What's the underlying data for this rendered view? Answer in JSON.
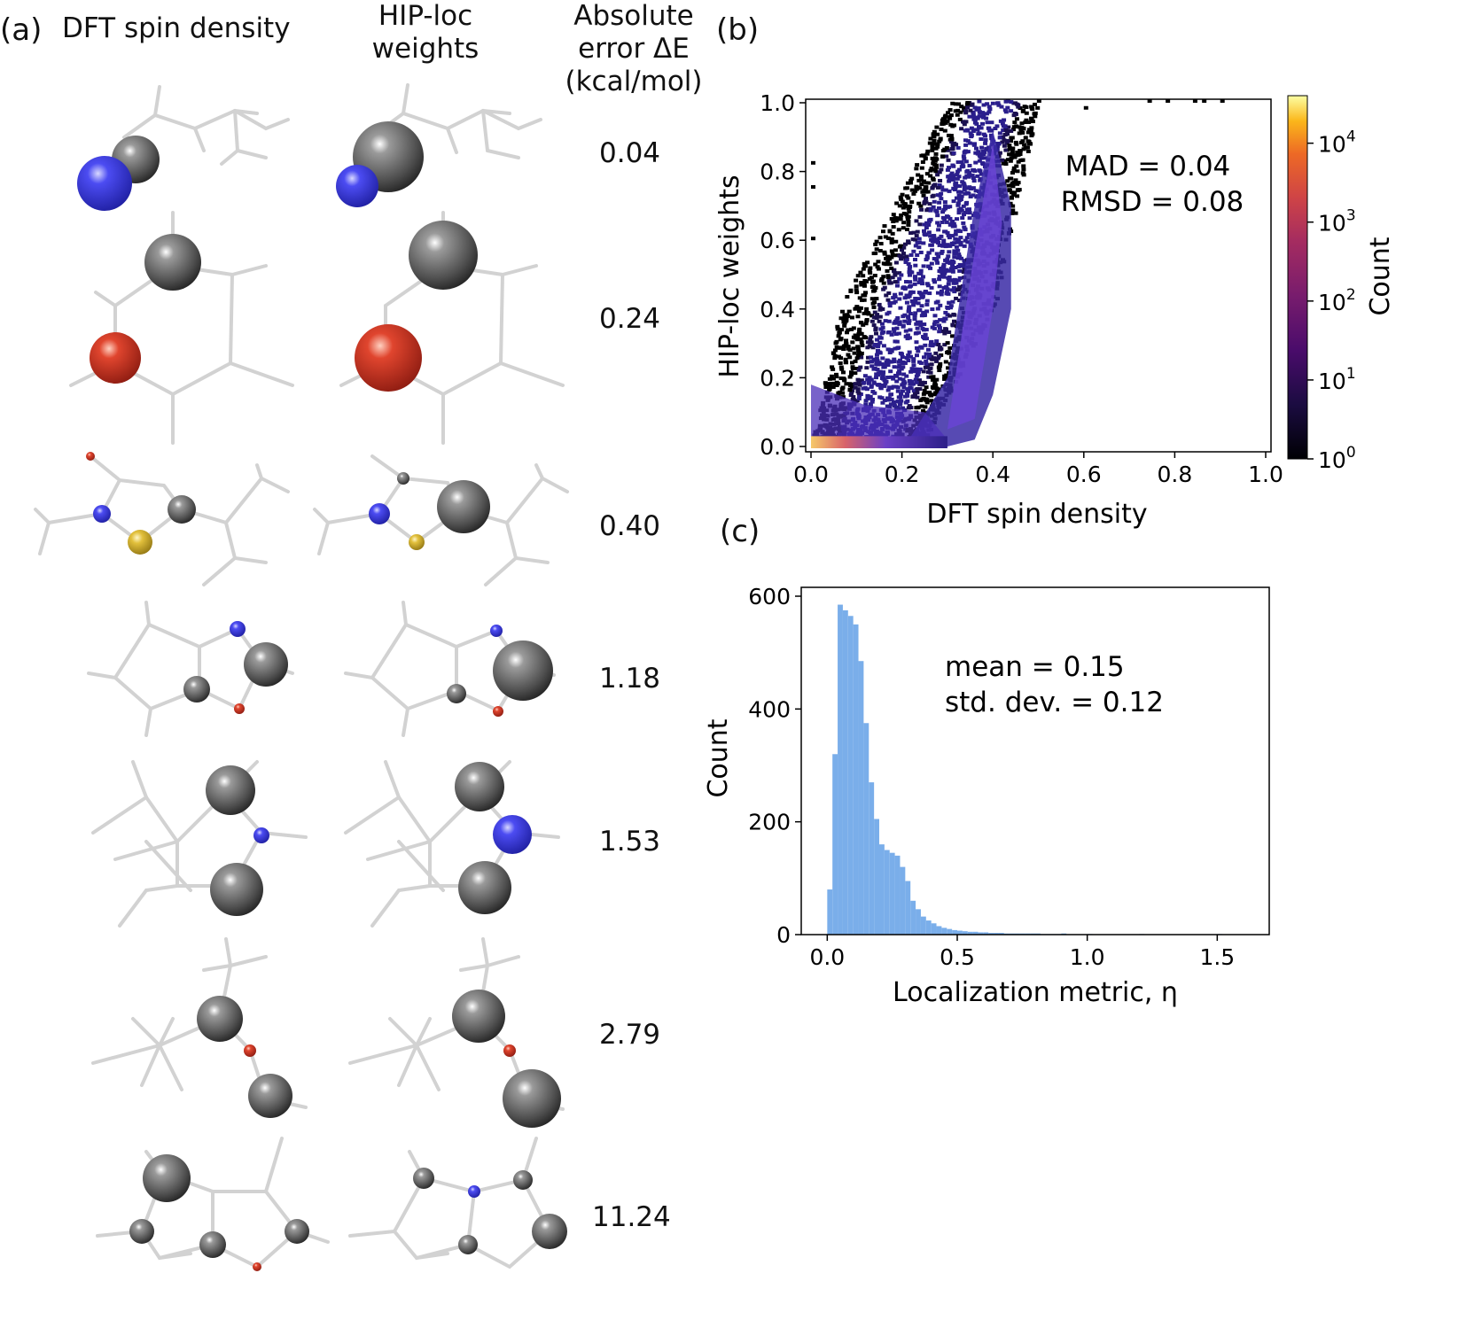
{
  "panel_a": {
    "label": "(a)",
    "col_spin": "DFT spin density",
    "col_hip": "HIP-loc weights",
    "col_err": "Absolute error ΔE (kcal/mol)",
    "errors": [
      "0.04",
      "0.24",
      "0.40",
      "1.18",
      "1.53",
      "2.79",
      "11.24"
    ]
  },
  "panel_b": {
    "label": "(b)",
    "mad": "MAD = 0.04",
    "rmsd": "RMSD = 0.08",
    "colorbar_label": "Count",
    "colorbar_ticks": [
      "10",
      "10",
      "10",
      "10",
      "10"
    ],
    "colorbar_exps": [
      "0",
      "1",
      "2",
      "3",
      "4"
    ]
  },
  "panel_c": {
    "label": "(c)",
    "mean": "mean = 0.15",
    "std": "std. dev. = 0.12"
  },
  "colors": {
    "carbon": "#5a5a5a",
    "nitrogen": "#3b3bdc",
    "oxygen": "#d63a2a",
    "sulfur": "#d8b830",
    "bond": "#cfcfcf",
    "hist_bar": "#7aaeea"
  },
  "chart_data": [
    {
      "type": "heatmap",
      "xlabel": "DFT spin density",
      "ylabel": "HIP-loc weights",
      "xlim": [
        0,
        1.0
      ],
      "ylim": [
        0,
        1.0
      ],
      "xticks": [
        "0.0",
        "0.2",
        "0.4",
        "0.6",
        "0.8",
        "1.0"
      ],
      "yticks": [
        "0.0",
        "0.2",
        "0.4",
        "0.6",
        "0.8",
        "1.0"
      ],
      "color_scale": "log",
      "color_range": [
        1,
        40000
      ],
      "colormap": "inferno",
      "grid": false
    },
    {
      "type": "bar",
      "xlabel": "Localization metric, η",
      "ylabel": "Count",
      "xlim": [
        -0.1,
        1.7
      ],
      "ylim": [
        0,
        600
      ],
      "xticks": [
        "0.0",
        "0.5",
        "1.0",
        "1.5"
      ],
      "yticks": [
        "0",
        "200",
        "400",
        "600"
      ],
      "bin_width": 0.02,
      "x": [
        0.0,
        0.02,
        0.04,
        0.06,
        0.08,
        0.1,
        0.12,
        0.14,
        0.16,
        0.18,
        0.2,
        0.22,
        0.24,
        0.26,
        0.28,
        0.3,
        0.32,
        0.34,
        0.36,
        0.38,
        0.4,
        0.42,
        0.44,
        0.46,
        0.48,
        0.5,
        0.52,
        0.54,
        0.56,
        0.58,
        0.6,
        0.62,
        0.64,
        0.66,
        0.68,
        0.7,
        0.72,
        0.74,
        0.76,
        0.78,
        0.8,
        0.82,
        0.84,
        0.86,
        0.88,
        0.9,
        1.0,
        1.2,
        1.5
      ],
      "values": [
        80,
        320,
        585,
        575,
        565,
        550,
        485,
        375,
        270,
        205,
        160,
        150,
        145,
        140,
        120,
        95,
        60,
        45,
        32,
        25,
        20,
        15,
        12,
        10,
        8,
        7,
        6,
        5,
        5,
        4,
        4,
        3,
        3,
        3,
        2,
        2,
        2,
        2,
        2,
        2,
        2,
        1,
        1,
        1,
        1,
        2,
        1,
        1,
        1
      ],
      "grid": false
    }
  ]
}
